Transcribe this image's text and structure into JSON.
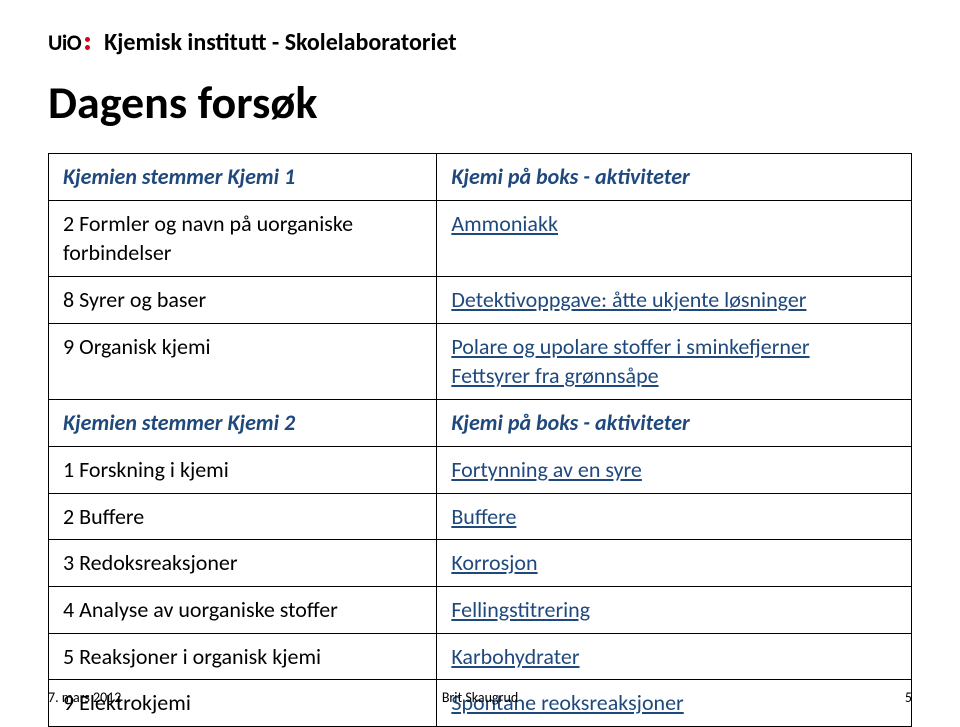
{
  "header": {
    "logo_text": "UiO",
    "institute": "Kjemisk institutt - Skolelaboratoriet"
  },
  "title": "Dagens forsøk",
  "sections": [
    {
      "left_head": "Kjemien stemmer Kjemi 1",
      "right_head": "Kjemi på boks - aktiviteter",
      "rows": [
        {
          "left": "2 Formler og navn på uorganiske forbindelser",
          "right_links": [
            "Ammoniakk"
          ]
        },
        {
          "left": "8 Syrer og baser",
          "right_links": [
            "Detektivoppgave: åtte ukjente løsninger"
          ]
        },
        {
          "left": "9 Organisk kjemi",
          "right_links": [
            "Polare og upolare stoffer i sminkefjerner",
            "Fettsyrer fra grønnsåpe"
          ]
        }
      ]
    },
    {
      "left_head": "Kjemien stemmer Kjemi 2",
      "right_head": "Kjemi på boks - aktiviteter",
      "rows": [
        {
          "left": "1 Forskning i kjemi",
          "right_links": [
            "Fortynning av en syre"
          ]
        },
        {
          "left": "2 Buffere",
          "right_links": [
            "Buffere"
          ]
        },
        {
          "left": "3 Redoksreaksjoner",
          "right_links": [
            "Korrosjon"
          ]
        },
        {
          "left": "4 Analyse av uorganiske stoffer",
          "right_links": [
            "Fellingstitrering"
          ]
        },
        {
          "left": "5 Reaksjoner i organisk kjemi",
          "right_links": [
            "Karbohydrater"
          ]
        },
        {
          "left": "9 Elektrokjemi",
          "right_links": [
            "Spontane reoksreaksjoner"
          ]
        }
      ]
    }
  ],
  "footer": {
    "date": "7. mars 2012",
    "author": "Brit Skaugrud",
    "page": "5"
  },
  "colors": {
    "link": "#1f497d",
    "logo_dot": "#d8001a",
    "border": "#000000",
    "text": "#000000",
    "bg": "#ffffff"
  }
}
